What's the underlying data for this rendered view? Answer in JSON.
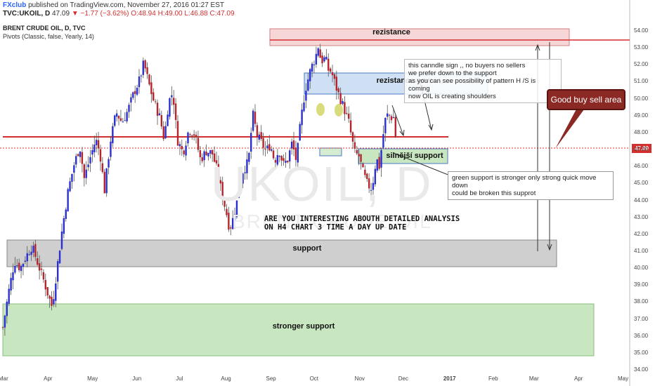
{
  "header": {
    "brand": "FXclub",
    "published": " published on TradingView.com, November 27, 2016 01:27 EST",
    "symbol": "TVC:UKOIL, D",
    "last": "47.09",
    "change": "▼ −1.77 (−3.62%)",
    "ohlc": "O:48.94 H:49.00 L:46.88 C:47.09",
    "title": "BRENT CRUDE OIL, D, TVC",
    "indicator": "Pivots (Classic, false, Yearly, 14)"
  },
  "watermark": {
    "main": "UKOIL, D",
    "sub": "BRENT CRUDE OIL"
  },
  "price_tag": "47.09",
  "labels": {
    "rezistance": "rezistance",
    "rezistance_now": "rezistance now",
    "silnejsi": "silnější support",
    "support": "support",
    "stronger_support": "stronger support",
    "good_buy_sell": "Good buy sell area"
  },
  "notes": {
    "candle": "this canndle sign  ,, no buyers no sellers\n  we prefer down to the support\nas you can see possibility of pattern H /S is coming\nnow OIL is creating shoulders",
    "green": "green support is stronger only strong quick move down\ncould be broken this supprot",
    "analysis": "ARE YOU INTERESTING ABOUTH DETAILED ANALYSIS\nON H4 CHART 3 TIME A DAY UP DATE"
  },
  "colors": {
    "up": "#2a2fd1",
    "down": "#b5262c",
    "accent_red": "#d32f2f",
    "green_zone": "#c8e6c0",
    "gray_zone": "#cfcfcf",
    "pink_zone": "#f6d6d6",
    "blue_zone": "#cfe0f5"
  },
  "chart_data": {
    "type": "candlestick",
    "y_ticks": [
      "54.00",
      "53.00",
      "52.00",
      "51.00",
      "50.00",
      "49.00",
      "48.00",
      "47.00",
      "46.00",
      "45.00",
      "44.00",
      "43.00",
      "42.00",
      "41.00",
      "40.00",
      "39.00",
      "38.00",
      "37.00",
      "36.00",
      "35.00",
      "34.00"
    ],
    "ylim": [
      33.8,
      54.4
    ],
    "x_labels": [
      {
        "label": "Mar",
        "day": 0
      },
      {
        "label": "Apr",
        "day": 31
      },
      {
        "label": "May",
        "day": 61
      },
      {
        "label": "Jun",
        "day": 92
      },
      {
        "label": "Jul",
        "day": 122
      },
      {
        "label": "Aug",
        "day": 153
      },
      {
        "label": "Sep",
        "day": 184
      },
      {
        "label": "Oct",
        "day": 214
      },
      {
        "label": "Nov",
        "day": 245
      },
      {
        "label": "Dec",
        "day": 275
      },
      {
        "label": "2017",
        "day": 306
      },
      {
        "label": "Feb",
        "day": 337
      },
      {
        "label": "Mar",
        "day": 365
      },
      {
        "label": "Apr",
        "day": 396
      },
      {
        "label": "May",
        "day": 426
      }
    ],
    "xlim_days": [
      0,
      432
    ],
    "close_path": [
      [
        0,
        36.5
      ],
      [
        4,
        38.6
      ],
      [
        8,
        40.4
      ],
      [
        12,
        40.0
      ],
      [
        16,
        40.7
      ],
      [
        20,
        41.3
      ],
      [
        24,
        40.3
      ],
      [
        28,
        39.3
      ],
      [
        32,
        38.2
      ],
      [
        34,
        37.7
      ],
      [
        37,
        39.8
      ],
      [
        41,
        42.4
      ],
      [
        45,
        44.6
      ],
      [
        49,
        46.1
      ],
      [
        53,
        47.2
      ],
      [
        56,
        45.3
      ],
      [
        60,
        46.5
      ],
      [
        64,
        47.6
      ],
      [
        67,
        46.7
      ],
      [
        70,
        44.6
      ],
      [
        74,
        47.5
      ],
      [
        78,
        49.2
      ],
      [
        82,
        48.6
      ],
      [
        86,
        49.3
      ],
      [
        90,
        50.3
      ],
      [
        94,
        51.1
      ],
      [
        97,
        52.1
      ],
      [
        99,
        51.4
      ],
      [
        101,
        50.7
      ],
      [
        104,
        49.8
      ],
      [
        108,
        48.9
      ],
      [
        111,
        47.6
      ],
      [
        114,
        49.8
      ],
      [
        117,
        50.4
      ],
      [
        120,
        47.6
      ],
      [
        124,
        46.8
      ],
      [
        128,
        48.2
      ],
      [
        132,
        47.9
      ],
      [
        136,
        46.4
      ],
      [
        140,
        46.9
      ],
      [
        144,
        46.8
      ],
      [
        147,
        45.9
      ],
      [
        151,
        44.3
      ],
      [
        154,
        43.2
      ],
      [
        156,
        42.3
      ],
      [
        158,
        42.8
      ],
      [
        161,
        43.9
      ],
      [
        165,
        45.7
      ],
      [
        169,
        46.3
      ],
      [
        172,
        49.1
      ],
      [
        175,
        47.8
      ],
      [
        178,
        47.4
      ],
      [
        181,
        46.9
      ],
      [
        184,
        47.3
      ],
      [
        187,
        46.3
      ],
      [
        190,
        47.0
      ],
      [
        193,
        46.1
      ],
      [
        196,
        46.4
      ],
      [
        199,
        47.4
      ],
      [
        202,
        46.3
      ],
      [
        205,
        48.7
      ],
      [
        208,
        50.5
      ],
      [
        212,
        51.8
      ],
      [
        215,
        52.4
      ],
      [
        217,
        53.1
      ],
      [
        219,
        52.2
      ],
      [
        222,
        52.4
      ],
      [
        224,
        51.7
      ],
      [
        226,
        51.6
      ],
      [
        230,
        50.5
      ],
      [
        234,
        49.6
      ],
      [
        238,
        48.6
      ],
      [
        242,
        46.8
      ],
      [
        245,
        46.6
      ],
      [
        248,
        45.6
      ],
      [
        251,
        44.9
      ],
      [
        254,
        44.7
      ],
      [
        257,
        46.5
      ],
      [
        259,
        46.0
      ],
      [
        261,
        47.4
      ],
      [
        263,
        48.7
      ],
      [
        265,
        49.1
      ],
      [
        267,
        48.9
      ],
      [
        269,
        48.9
      ],
      [
        271,
        47.09
      ]
    ]
  }
}
